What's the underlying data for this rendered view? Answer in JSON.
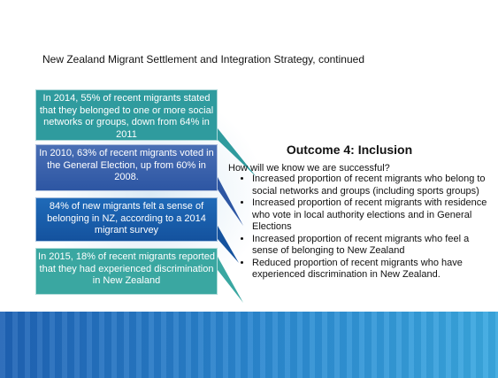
{
  "header": {
    "title": "New Zealand Migrant Settlement and Integration Strategy, continued"
  },
  "callouts": [
    "In 2014, 55% of recent migrants stated that they belonged to one or more social networks or groups, down from 64% in 2011",
    "In 2010, 63% of recent migrants voted in the General Election, up from 60% in 2008.",
    "84% of new migrants felt a sense of belonging in NZ, according to a 2014 migrant survey",
    "In 2015, 18% of recent migrants reported that they had experienced discrimination in New Zealand"
  ],
  "outcome": {
    "heading": "Outcome 4: Inclusion",
    "question": "How will we know we are successful?",
    "bullets": [
      "Increased proportion of recent migrants who belong to social networks and groups (including sports groups)",
      "Increased proportion of recent migrants with residence who vote in local authority elections and in General Elections",
      "Increased proportion of recent migrants who feel a sense of belonging to New Zealand",
      "Reduced proportion of recent migrants who have experienced discrimination in New Zealand."
    ]
  }
}
